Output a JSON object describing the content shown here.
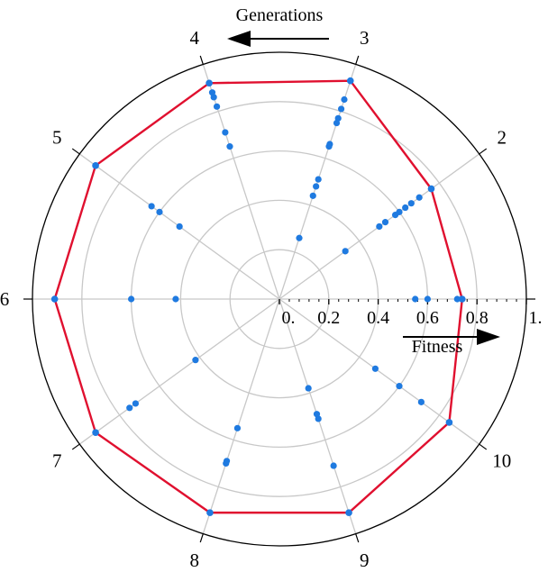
{
  "chart_data": {
    "type": "scatter",
    "subtype": "polar",
    "generations": [
      "1",
      "2",
      "3",
      "4",
      "5",
      "6",
      "7",
      "8",
      "9",
      "10"
    ],
    "radial_ticks": [
      "0.",
      "0.2",
      "0.4",
      "0.6",
      "0.8",
      "1."
    ],
    "rlim": [
      0,
      1
    ],
    "grid": true,
    "generations_label": "Generations",
    "fitness_label": "Fitness",
    "point_color": "#1f7ae0",
    "line_color": "#e0102f",
    "points": [
      {
        "gen": 1,
        "r": [
          0.55,
          0.6,
          0.72,
          0.74
        ]
      },
      {
        "gen": 2,
        "r": [
          0.33,
          0.5,
          0.53,
          0.58,
          0.6,
          0.63,
          0.66,
          0.7,
          0.76
        ]
      },
      {
        "gen": 3,
        "r": [
          0.26,
          0.44,
          0.48,
          0.51,
          0.65,
          0.66,
          0.75,
          0.77,
          0.81,
          0.85,
          0.93
        ]
      },
      {
        "gen": 4,
        "r": [
          0.65,
          0.71,
          0.82,
          0.86,
          0.88,
          0.92
        ]
      },
      {
        "gen": 5,
        "r": [
          0.5,
          0.6,
          0.64,
          0.92
        ]
      },
      {
        "gen": 6,
        "r": [
          0.42,
          0.6,
          0.91
        ]
      },
      {
        "gen": 7,
        "r": [
          0.42,
          0.72,
          0.75,
          0.92
        ]
      },
      {
        "gen": 8,
        "r": [
          0.55,
          0.69,
          0.7,
          0.91
        ]
      },
      {
        "gen": 9,
        "r": [
          0.38,
          0.49,
          0.51,
          0.71,
          0.91
        ]
      },
      {
        "gen": 10,
        "r": [
          0.48,
          0.6,
          0.71,
          0.85
        ]
      }
    ],
    "best_fitness": [
      0.74,
      0.76,
      0.93,
      0.92,
      0.92,
      0.91,
      0.92,
      0.91,
      0.91,
      0.85
    ]
  }
}
